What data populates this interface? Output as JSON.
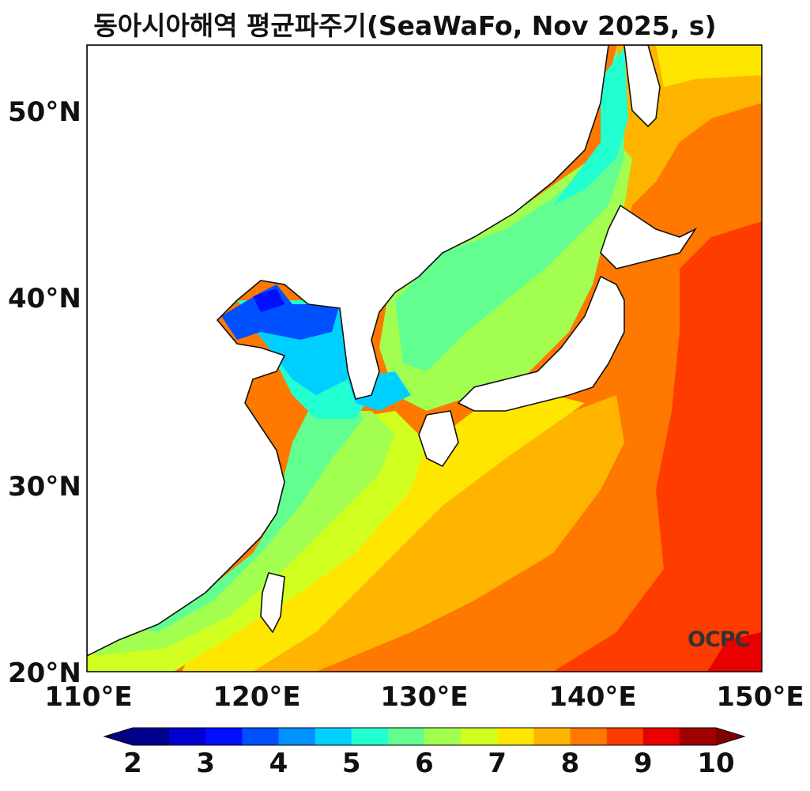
{
  "title": "동아시아해역 평균파주기(SeaWaFo, Nov 2025, s)",
  "watermark": "OCPC",
  "axes": {
    "lon_range": [
      110,
      150
    ],
    "lat_range": [
      20,
      53.5
    ],
    "x_ticks": [
      "110°E",
      "120°E",
      "130°E",
      "140°E",
      "150°E"
    ],
    "y_ticks": [
      "20°N",
      "30°N",
      "40°N",
      "50°N"
    ]
  },
  "colorbar": {
    "labels": [
      "2",
      "3",
      "4",
      "5",
      "6",
      "7",
      "8",
      "9",
      "10"
    ],
    "colors": [
      "#00008f",
      "#0000d0",
      "#0010ff",
      "#0050ff",
      "#0090ff",
      "#00d0ff",
      "#22ffd0",
      "#62ff90",
      "#a2ff50",
      "#d0ff20",
      "#ffe600",
      "#ffb400",
      "#ff7800",
      "#ff3c00",
      "#e80000",
      "#a00000"
    ],
    "under_color": "#000080",
    "over_color": "#800000"
  }
}
